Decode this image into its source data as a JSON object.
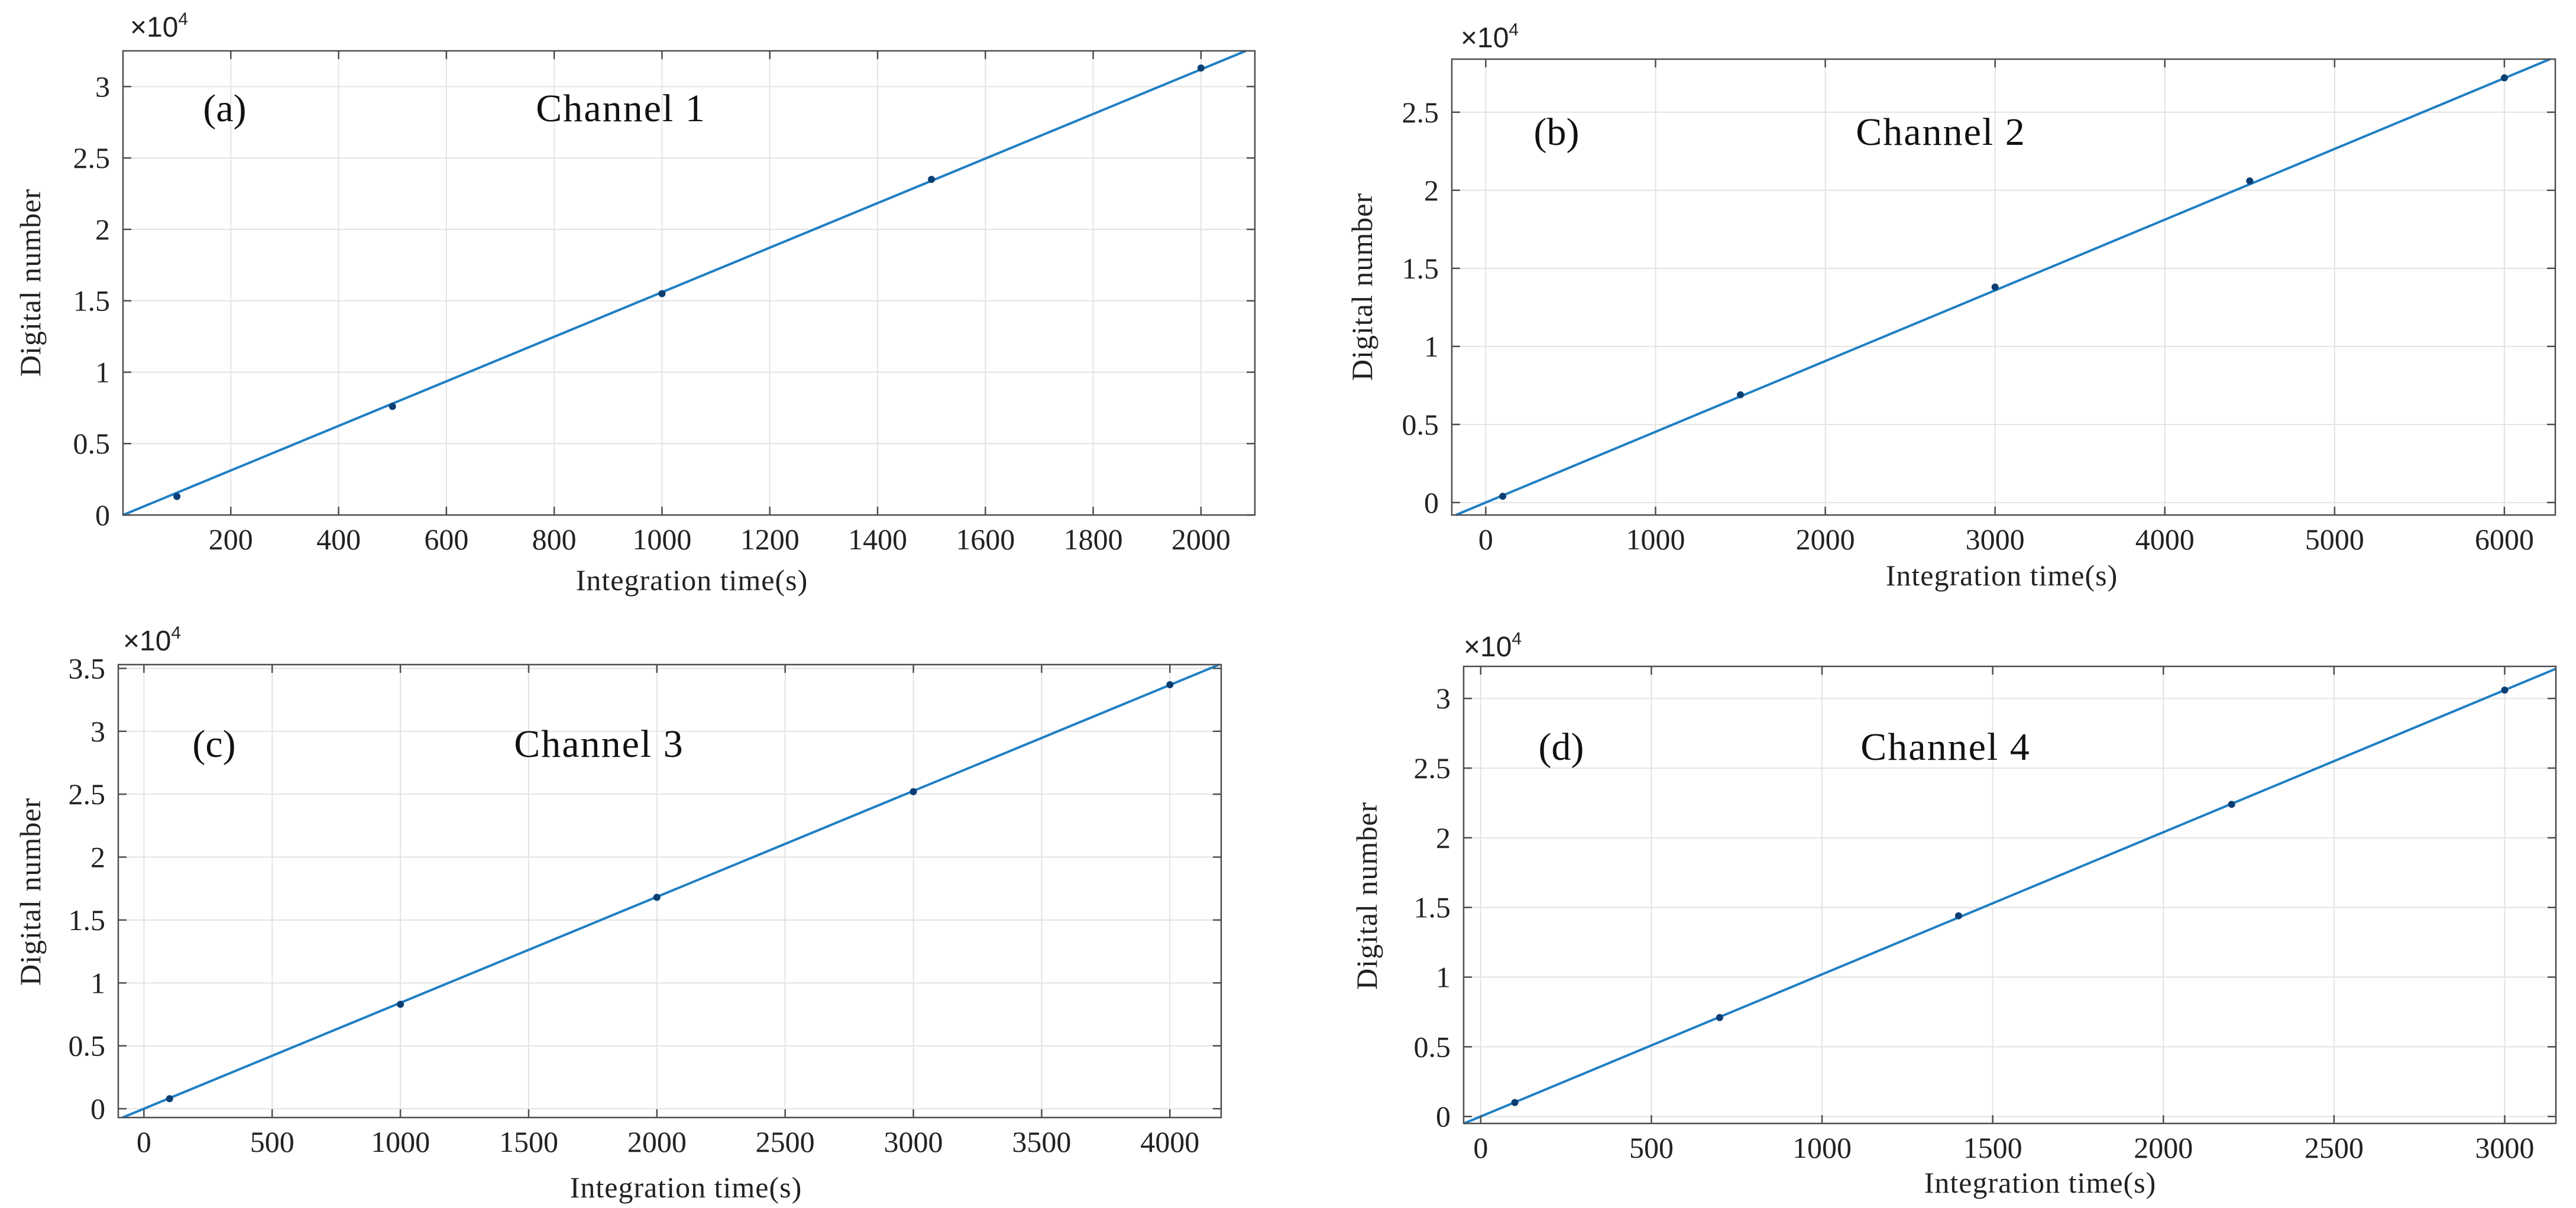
{
  "figure": {
    "background": "#ffffff"
  },
  "chart_data": [
    {
      "type": "scatter",
      "panel": "(a)",
      "title": "Channel 1",
      "xlabel": "Integration time(s)",
      "ylabel": "Digital number",
      "exponent_label": "×10",
      "exponent_power": "4",
      "xlim": [
        0,
        2100
      ],
      "ylim": [
        0,
        32500
      ],
      "xticks": [
        200,
        400,
        600,
        800,
        1000,
        1200,
        1400,
        1600,
        1800,
        2000
      ],
      "xtick_labels": [
        "200",
        "400",
        "600",
        "800",
        "1000",
        "1200",
        "1400",
        "1600",
        "1800",
        "2000"
      ],
      "yticks": [
        0,
        5000,
        10000,
        15000,
        20000,
        25000,
        30000
      ],
      "ytick_labels": [
        "0",
        "0.5",
        "1",
        "1.5",
        "2",
        "2.5",
        "3"
      ],
      "x": [
        100,
        500,
        1000,
        1500,
        2000
      ],
      "y": [
        1300,
        7600,
        15500,
        23500,
        31300
      ],
      "fit": {
        "slope": 15.6,
        "intercept": 0
      },
      "line_color": "#1f7fc4",
      "marker_color": "#0b3f73"
    },
    {
      "type": "scatter",
      "panel": "(b)",
      "title": "Channel 2",
      "xlabel": "Integration time(s)",
      "ylabel": "Digital number",
      "exponent_label": "×10",
      "exponent_power": "4",
      "xlim": [
        -200,
        6300
      ],
      "ylim": [
        -800,
        28400
      ],
      "xticks": [
        0,
        1000,
        2000,
        3000,
        4000,
        5000,
        6000
      ],
      "xtick_labels": [
        "0",
        "1000",
        "2000",
        "3000",
        "4000",
        "5000",
        "6000"
      ],
      "yticks": [
        0,
        5000,
        10000,
        15000,
        20000,
        25000
      ],
      "ytick_labels": [
        "0",
        "0.5",
        "1",
        "1.5",
        "2",
        "2.5"
      ],
      "x": [
        100,
        1500,
        3000,
        4500,
        6000
      ],
      "y": [
        400,
        6900,
        13800,
        20600,
        27200
      ],
      "fit": {
        "slope": 4.53,
        "intercept": 0
      },
      "line_color": "#1f7fc4",
      "marker_color": "#0b3f73"
    },
    {
      "type": "scatter",
      "panel": "(c)",
      "title": "Channel 3",
      "xlabel": "Integration time(s)",
      "ylabel": "Digital number",
      "exponent_label": "×10",
      "exponent_power": "4",
      "xlim": [
        -100,
        4200
      ],
      "ylim": [
        -700,
        35300
      ],
      "xticks": [
        0,
        500,
        1000,
        1500,
        2000,
        2500,
        3000,
        3500,
        4000
      ],
      "xtick_labels": [
        "0",
        "500",
        "1000",
        "1500",
        "2000",
        "2500",
        "3000",
        "3500",
        "4000"
      ],
      "yticks": [
        0,
        5000,
        10000,
        15000,
        20000,
        25000,
        30000,
        35000
      ],
      "ytick_labels": [
        "0",
        "0.5",
        "1",
        "1.5",
        "2",
        "2.5",
        "3",
        "3.5"
      ],
      "x": [
        100,
        1000,
        2000,
        3000,
        4000
      ],
      "y": [
        800,
        8300,
        16800,
        25200,
        33700
      ],
      "fit": {
        "slope": 8.42,
        "intercept": 0
      },
      "line_color": "#1f7fc4",
      "marker_color": "#0b3f73"
    },
    {
      "type": "scatter",
      "panel": "(d)",
      "title": "Channel 4",
      "xlabel": "Integration time(s)",
      "ylabel": "Digital number",
      "exponent_label": "×10",
      "exponent_power": "4",
      "xlim": [
        -50,
        3150
      ],
      "ylim": [
        -500,
        32300
      ],
      "xticks": [
        0,
        500,
        1000,
        1500,
        2000,
        2500,
        3000
      ],
      "xtick_labels": [
        "0",
        "500",
        "1000",
        "1500",
        "2000",
        "2500",
        "3000"
      ],
      "yticks": [
        0,
        5000,
        10000,
        15000,
        20000,
        25000,
        30000
      ],
      "ytick_labels": [
        "0",
        "0.5",
        "1",
        "1.5",
        "2",
        "2.5",
        "3"
      ],
      "x": [
        100,
        700,
        1400,
        2200,
        3000
      ],
      "y": [
        1000,
        7100,
        14400,
        22400,
        30600
      ],
      "fit": {
        "slope": 10.2,
        "intercept": 0
      },
      "line_color": "#1f7fc4",
      "marker_color": "#0b3f73"
    }
  ]
}
